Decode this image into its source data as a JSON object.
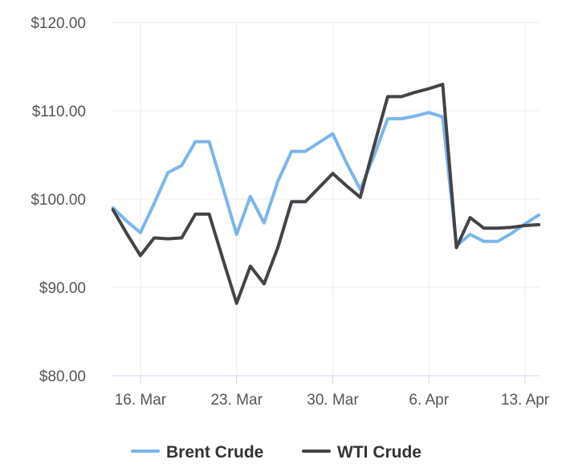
{
  "chart_data": {
    "type": "line",
    "x_type": "date",
    "x": [
      "2022-03-14",
      "2022-03-15",
      "2022-03-16",
      "2022-03-17",
      "2022-03-18",
      "2022-03-19",
      "2022-03-20",
      "2022-03-21",
      "2022-03-22",
      "2022-03-23",
      "2022-03-24",
      "2022-03-25",
      "2022-03-26",
      "2022-03-27",
      "2022-03-28",
      "2022-03-29",
      "2022-03-30",
      "2022-03-31",
      "2022-04-01",
      "2022-04-02",
      "2022-04-03",
      "2022-04-04",
      "2022-04-05",
      "2022-04-06",
      "2022-04-07",
      "2022-04-08",
      "2022-04-09",
      "2022-04-10",
      "2022-04-11",
      "2022-04-12",
      "2022-04-13",
      "2022-04-14"
    ],
    "series": [
      {
        "name": "Brent Crude",
        "color": "#7cb5ec",
        "values": [
          99.0,
          97.5,
          96.2,
          99.5,
          103.0,
          103.8,
          106.5,
          106.5,
          101.3,
          96.0,
          100.3,
          97.3,
          102.0,
          105.4,
          105.4,
          106.4,
          107.4,
          104.1,
          101.1,
          104.9,
          109.1,
          109.1,
          109.4,
          109.8,
          109.3,
          94.7,
          96.0,
          95.2,
          95.2,
          96.1,
          97.2,
          98.2
        ]
      },
      {
        "name": "WTI Crude",
        "color": "#434348",
        "values": [
          98.8,
          96.1,
          93.6,
          95.6,
          95.5,
          95.6,
          98.3,
          98.3,
          93.2,
          88.2,
          92.4,
          90.4,
          94.5,
          99.7,
          99.7,
          101.3,
          102.9,
          101.5,
          100.2,
          106.0,
          111.6,
          111.6,
          112.1,
          112.5,
          113.0,
          94.5,
          97.9,
          96.7,
          96.7,
          96.8,
          97.0,
          97.1
        ]
      }
    ],
    "xticks": [
      {
        "date": "2022-03-16",
        "label": "16. Mar"
      },
      {
        "date": "2022-03-23",
        "label": "23. Mar"
      },
      {
        "date": "2022-03-30",
        "label": "30. Mar"
      },
      {
        "date": "2022-04-06",
        "label": "6. Apr"
      },
      {
        "date": "2022-04-13",
        "label": "13. Apr"
      }
    ],
    "yticks": [
      {
        "value": 80,
        "label": "$80.00"
      },
      {
        "value": 90,
        "label": "$90.00"
      },
      {
        "value": 100,
        "label": "$100.00"
      },
      {
        "value": 110,
        "label": "$110.00"
      },
      {
        "value": 120,
        "label": "$120.00"
      }
    ],
    "ylim": [
      80,
      120
    ],
    "xlabel": "",
    "ylabel": "",
    "title": "",
    "grid": {
      "vertical": true,
      "horizontal": true
    },
    "legend_position": "bottom-center"
  }
}
